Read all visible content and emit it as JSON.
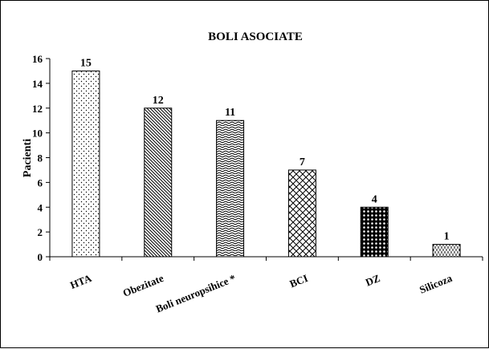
{
  "chart_data": {
    "type": "bar",
    "title": "BOLI ASOCIATE",
    "ylabel": "Pacienti",
    "xlabel": "",
    "categories": [
      "HTA",
      "Obezitate",
      "Boli neuropsihice *",
      "BCI",
      "DZ",
      "Silicoza"
    ],
    "values": [
      15,
      12,
      11,
      7,
      4,
      1
    ],
    "ylim": [
      0,
      16
    ],
    "yticks": [
      0,
      2,
      4,
      6,
      8,
      10,
      12,
      14,
      16
    ],
    "patterns": [
      "dots",
      "diagonal-dense",
      "zigzag",
      "diamond-grid",
      "checker-dots",
      "dash-vertical"
    ],
    "grid": false,
    "legend": "none",
    "bar_fill": "#ffffff",
    "ink_color": "#000000"
  }
}
